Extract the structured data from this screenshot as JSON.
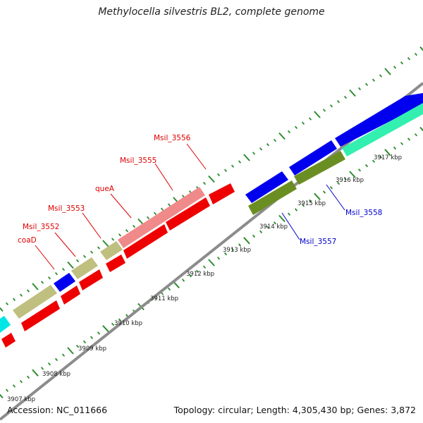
{
  "title": "Methylocella silvestris BL2, complete genome",
  "footer": {
    "accession": "Accession: NC_011666",
    "topology": "Topology: circular; Length: 4,305,430 bp; Genes: 3,872"
  },
  "colors": {
    "backbone": "#8c8c8c",
    "ticks": "#2e8b2e",
    "label_red": "#dd0000",
    "label_blue": "#0000cc"
  },
  "scale_labels": [
    "3907 kbp",
    "3908 kbp",
    "3909 kbp",
    "3910 kbp",
    "3911 kbp",
    "3912 kbp",
    "3913 kbp",
    "3914 kbp",
    "3915 kbp",
    "3916 kbp",
    "3917 kbp"
  ],
  "gene_labels": [
    {
      "text": "coaD",
      "color": "red"
    },
    {
      "text": "Msil_3552",
      "color": "red"
    },
    {
      "text": "Msil_3553",
      "color": "red"
    },
    {
      "text": "queA",
      "color": "red"
    },
    {
      "text": "Msil_3555",
      "color": "red"
    },
    {
      "text": "Msil_3556",
      "color": "red"
    },
    {
      "text": "Msil_3557",
      "color": "blue"
    },
    {
      "text": "Msil_3558",
      "color": "blue"
    }
  ]
}
